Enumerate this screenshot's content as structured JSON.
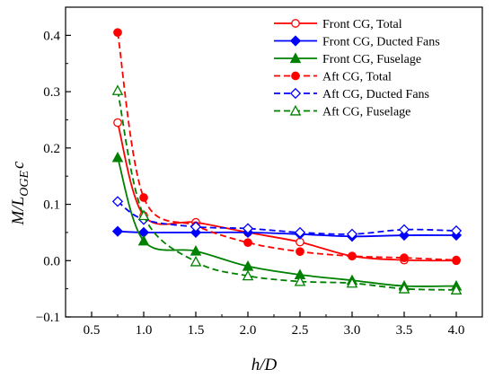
{
  "chart_data": {
    "type": "line",
    "xlabel": "h/D",
    "ylabel": "M/L_OGE c",
    "ylabel_parts": {
      "main": "M/L",
      "sub": "OGE",
      "tail": "c"
    },
    "xlim": [
      0.25,
      4.25
    ],
    "ylim": [
      -0.1,
      0.45
    ],
    "xticks": [
      "0.5",
      "1.0",
      "1.5",
      "2.0",
      "2.5",
      "3.0",
      "3.5",
      "4.0"
    ],
    "xtick_values": [
      0.5,
      1.0,
      1.5,
      2.0,
      2.5,
      3.0,
      3.5,
      4.0
    ],
    "yticks": [
      "−0.1",
      "0.0",
      "0.1",
      "0.2",
      "0.3",
      "0.4"
    ],
    "ytick_values": [
      -0.1,
      0.0,
      0.1,
      0.2,
      0.3,
      0.4
    ],
    "legend_position": "top-right",
    "grid": false,
    "series": [
      {
        "name": "Front CG, Total",
        "color": "#ff0000",
        "dash": "solid",
        "marker": "circle",
        "filled": false,
        "x": [
          0.75,
          1.0,
          1.5,
          2.0,
          2.5,
          3.0,
          3.5,
          4.0
        ],
        "y": [
          0.245,
          0.08,
          0.068,
          0.05,
          0.033,
          0.008,
          0.001,
          0.0
        ]
      },
      {
        "name": "Front CG, Ducted Fans",
        "color": "#0000ff",
        "dash": "solid",
        "marker": "diamond",
        "filled": true,
        "x": [
          0.75,
          1.0,
          1.5,
          2.0,
          2.5,
          3.0,
          3.5,
          4.0
        ],
        "y": [
          0.052,
          0.05,
          0.05,
          0.05,
          0.047,
          0.043,
          0.045,
          0.045
        ]
      },
      {
        "name": "Front CG, Fuselage",
        "color": "#008000",
        "dash": "solid",
        "marker": "triangle",
        "filled": true,
        "x": [
          0.75,
          1.0,
          1.5,
          2.0,
          2.5,
          3.0,
          3.5,
          4.0
        ],
        "y": [
          0.183,
          0.035,
          0.017,
          -0.01,
          -0.025,
          -0.035,
          -0.045,
          -0.045
        ]
      },
      {
        "name": "Aft CG, Total",
        "color": "#ff0000",
        "dash": "dashed",
        "marker": "circle",
        "filled": true,
        "x": [
          0.75,
          1.0,
          1.5,
          2.0,
          2.5,
          3.0,
          3.5,
          4.0
        ],
        "y": [
          0.405,
          0.112,
          0.062,
          0.032,
          0.016,
          0.008,
          0.005,
          0.001
        ]
      },
      {
        "name": "Aft CG, Ducted Fans",
        "color": "#0000ff",
        "dash": "dashed",
        "marker": "diamond",
        "filled": false,
        "x": [
          0.75,
          1.0,
          1.5,
          2.0,
          2.5,
          3.0,
          3.5,
          4.0
        ],
        "y": [
          0.105,
          0.073,
          0.06,
          0.057,
          0.05,
          0.047,
          0.055,
          0.053
        ]
      },
      {
        "name": "Aft CG, Fuselage",
        "color": "#008000",
        "dash": "dashed",
        "marker": "triangle",
        "filled": false,
        "x": [
          0.75,
          1.0,
          1.5,
          2.0,
          2.5,
          3.0,
          3.5,
          4.0
        ],
        "y": [
          0.302,
          0.08,
          -0.002,
          -0.027,
          -0.037,
          -0.04,
          -0.05,
          -0.052
        ]
      }
    ]
  }
}
